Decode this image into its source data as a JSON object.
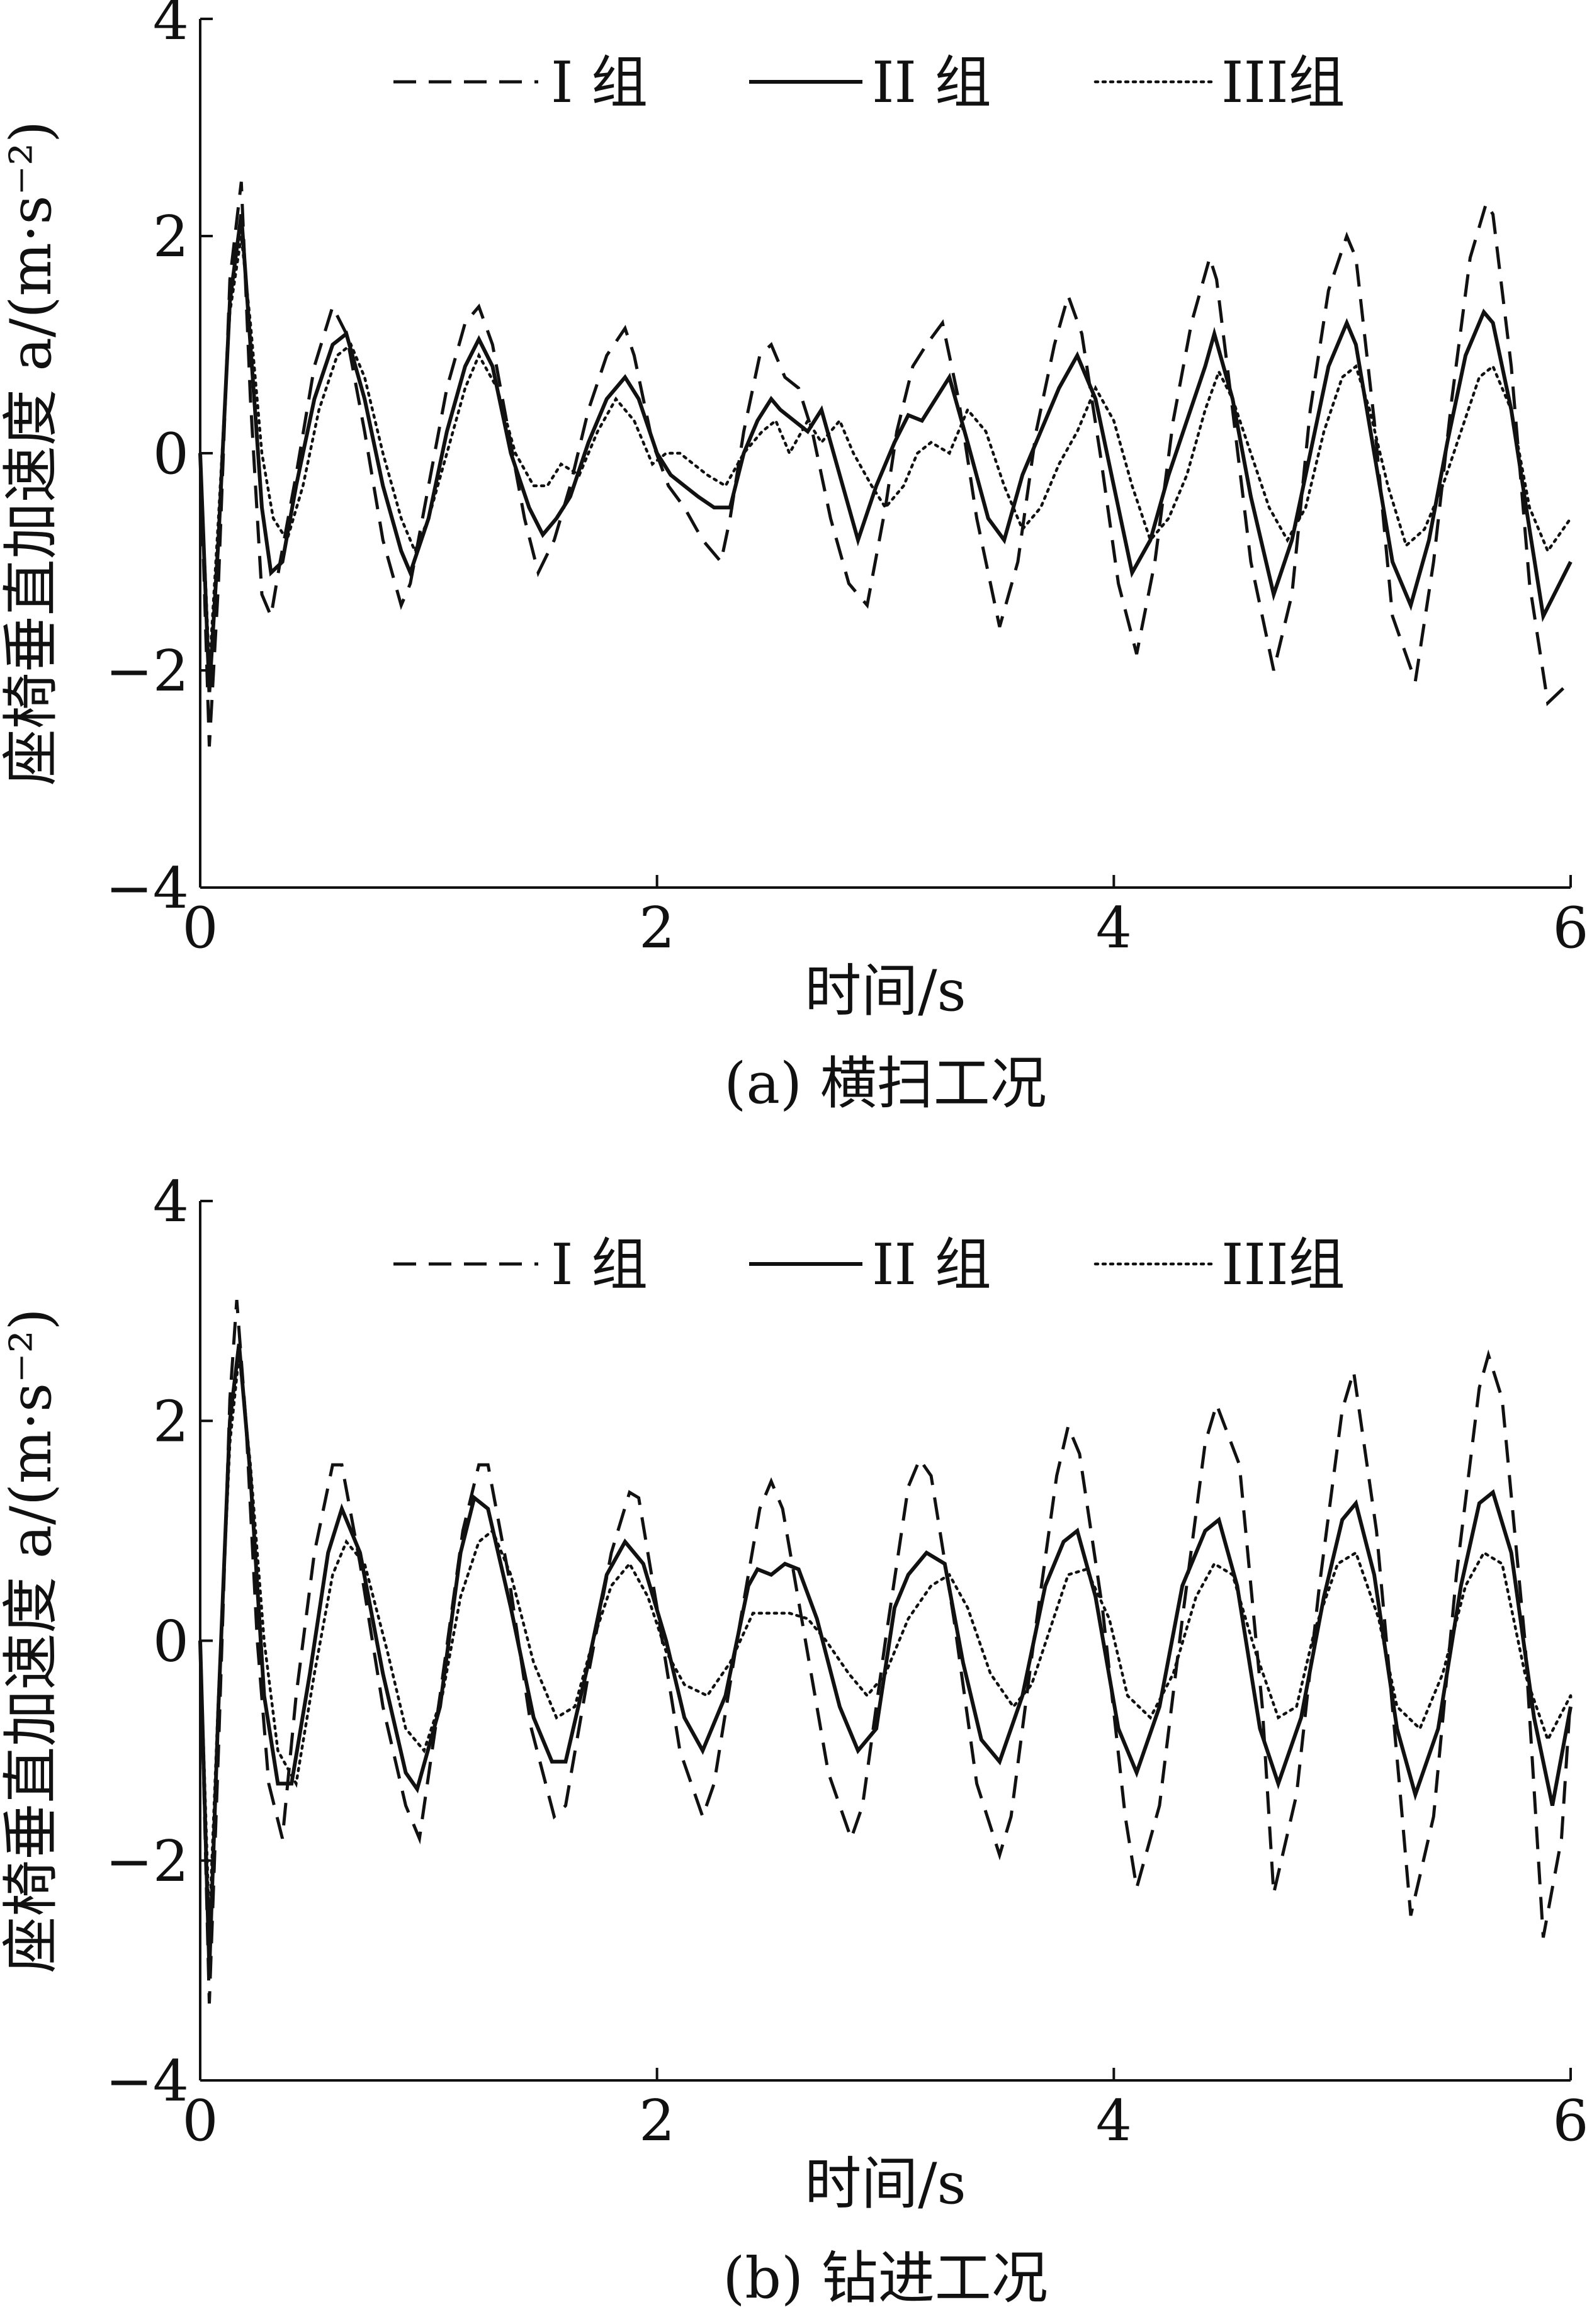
{
  "figure": {
    "legend": [
      "I 组",
      "II 组",
      "III组"
    ],
    "ylabel": "座椅垂直加速度 a/(m·s⁻²)",
    "xlabel": "时间/s"
  },
  "chart_data": [
    {
      "type": "line",
      "caption": "(a)  横扫工况",
      "xlabel": "时间/s",
      "ylabel": "座椅垂直加速度 a/(m·s⁻²)",
      "xlim": [
        0,
        6
      ],
      "ylim": [
        -4,
        4
      ],
      "xticks": [
        0,
        2,
        4,
        6
      ],
      "yticks": [
        -4,
        -2,
        0,
        2,
        4
      ],
      "ytick_labels": [
        "−4",
        "−2",
        "0",
        "2",
        "4"
      ],
      "grid": false,
      "legend_position": "top",
      "series": [
        {
          "name": "I 组",
          "style": "dashed",
          "x": [
            0,
            0.04,
            0.08,
            0.13,
            0.18,
            0.22,
            0.27,
            0.31,
            0.35,
            0.42,
            0.5,
            0.58,
            0.64,
            0.72,
            0.8,
            0.88,
            0.92,
            1.0,
            1.08,
            1.16,
            1.22,
            1.28,
            1.35,
            1.42,
            1.48,
            1.55,
            1.62,
            1.7,
            1.78,
            1.86,
            1.9,
            1.98,
            2.05,
            2.12,
            2.2,
            2.28,
            2.32,
            2.38,
            2.45,
            2.5,
            2.56,
            2.62,
            2.68,
            2.76,
            2.84,
            2.92,
            3.0,
            3.05,
            3.12,
            3.18,
            3.25,
            3.32,
            3.4,
            3.5,
            3.58,
            3.66,
            3.74,
            3.8,
            3.86,
            3.94,
            4.02,
            4.1,
            4.18,
            4.26,
            4.34,
            4.42,
            4.45,
            4.52,
            4.6,
            4.7,
            4.78,
            4.86,
            4.94,
            5.02,
            5.06,
            5.14,
            5.22,
            5.32,
            5.4,
            5.48,
            5.56,
            5.63,
            5.66,
            5.74,
            5.82,
            5.9,
            6.0
          ],
          "values": [
            0,
            -2.7,
            -1.2,
            1.6,
            2.5,
            0.5,
            -1.3,
            -1.5,
            -1.0,
            -0.2,
            0.8,
            1.35,
            1.1,
            0.2,
            -0.8,
            -1.4,
            -1.2,
            -0.3,
            0.6,
            1.2,
            1.35,
            1.0,
            0.2,
            -0.6,
            -1.1,
            -0.8,
            -0.3,
            0.4,
            0.9,
            1.15,
            0.9,
            0.1,
            -0.3,
            -0.5,
            -0.8,
            -1.0,
            -0.6,
            0.2,
            0.9,
            1.0,
            0.7,
            0.6,
            0.2,
            -0.6,
            -1.2,
            -1.4,
            -0.5,
            0.2,
            0.8,
            1.0,
            1.2,
            0.5,
            -0.6,
            -1.6,
            -1.0,
            0.2,
            1.0,
            1.45,
            1.1,
            0.0,
            -1.2,
            -1.85,
            -1.0,
            0.3,
            1.2,
            1.8,
            1.6,
            0.4,
            -1.0,
            -2.0,
            -1.3,
            0.4,
            1.5,
            2.0,
            1.8,
            0.3,
            -1.5,
            -2.1,
            -1.0,
            0.5,
            1.8,
            2.3,
            2.2,
            0.8,
            -1.2,
            -2.3,
            -2.1
          ]
        },
        {
          "name": "II 组",
          "style": "solid",
          "x": [
            0,
            0.04,
            0.08,
            0.13,
            0.18,
            0.22,
            0.27,
            0.31,
            0.36,
            0.42,
            0.5,
            0.58,
            0.64,
            0.72,
            0.8,
            0.88,
            0.92,
            1.0,
            1.08,
            1.16,
            1.22,
            1.28,
            1.36,
            1.44,
            1.5,
            1.56,
            1.62,
            1.7,
            1.78,
            1.86,
            1.92,
            2.0,
            2.06,
            2.12,
            2.18,
            2.25,
            2.32,
            2.38,
            2.44,
            2.5,
            2.54,
            2.6,
            2.66,
            2.72,
            2.8,
            2.88,
            2.96,
            3.04,
            3.1,
            3.16,
            3.22,
            3.28,
            3.36,
            3.45,
            3.52,
            3.6,
            3.68,
            3.76,
            3.84,
            3.92,
            4.0,
            4.08,
            4.16,
            4.24,
            4.32,
            4.4,
            4.44,
            4.52,
            4.6,
            4.7,
            4.78,
            4.86,
            4.94,
            5.02,
            5.06,
            5.14,
            5.22,
            5.3,
            5.38,
            5.46,
            5.54,
            5.62,
            5.66,
            5.74,
            5.82,
            5.88,
            6.0
          ],
          "values": [
            0,
            -2.2,
            -0.8,
            1.4,
            2.2,
            1.0,
            -0.5,
            -1.1,
            -1.0,
            -0.3,
            0.5,
            1.0,
            1.1,
            0.5,
            -0.3,
            -0.9,
            -1.1,
            -0.6,
            0.2,
            0.8,
            1.05,
            0.8,
            0.0,
            -0.5,
            -0.75,
            -0.6,
            -0.4,
            0.1,
            0.5,
            0.7,
            0.5,
            0.0,
            -0.2,
            -0.3,
            -0.4,
            -0.5,
            -0.5,
            0.0,
            0.3,
            0.5,
            0.4,
            0.3,
            0.2,
            0.4,
            -0.2,
            -0.8,
            -0.3,
            0.1,
            0.35,
            0.3,
            0.5,
            0.7,
            0.1,
            -0.6,
            -0.8,
            -0.2,
            0.2,
            0.6,
            0.9,
            0.5,
            -0.3,
            -1.1,
            -0.8,
            -0.2,
            0.3,
            0.8,
            1.1,
            0.5,
            -0.4,
            -1.3,
            -0.8,
            0.0,
            0.8,
            1.2,
            1.0,
            0.0,
            -1.0,
            -1.4,
            -0.8,
            0.1,
            0.9,
            1.3,
            1.2,
            0.4,
            -0.7,
            -1.5,
            -1.0
          ]
        },
        {
          "name": "III组",
          "style": "dotted",
          "x": [
            0,
            0.04,
            0.08,
            0.13,
            0.18,
            0.22,
            0.27,
            0.32,
            0.38,
            0.45,
            0.52,
            0.6,
            0.66,
            0.72,
            0.8,
            0.88,
            0.94,
            1.0,
            1.08,
            1.16,
            1.22,
            1.3,
            1.38,
            1.46,
            1.52,
            1.58,
            1.66,
            1.74,
            1.82,
            1.9,
            1.98,
            2.04,
            2.1,
            2.16,
            2.22,
            2.3,
            2.38,
            2.46,
            2.52,
            2.58,
            2.66,
            2.72,
            2.8,
            2.86,
            2.94,
            3.0,
            3.08,
            3.14,
            3.2,
            3.28,
            3.36,
            3.44,
            3.52,
            3.6,
            3.68,
            3.76,
            3.84,
            3.92,
            4.0,
            4.08,
            4.16,
            4.24,
            4.32,
            4.4,
            4.46,
            4.52,
            4.6,
            4.68,
            4.76,
            4.84,
            4.92,
            5.0,
            5.06,
            5.12,
            5.2,
            5.28,
            5.36,
            5.44,
            5.52,
            5.6,
            5.66,
            5.74,
            5.82,
            5.9,
            6.0
          ],
          "values": [
            0,
            -2.0,
            -0.6,
            1.3,
            2.0,
            1.2,
            0.0,
            -0.6,
            -0.8,
            -0.3,
            0.4,
            0.9,
            1.0,
            0.7,
            0.0,
            -0.6,
            -0.9,
            -0.6,
            0.0,
            0.6,
            0.9,
            0.6,
            0.0,
            -0.3,
            -0.3,
            -0.1,
            -0.2,
            0.2,
            0.5,
            0.3,
            -0.1,
            0.0,
            0.0,
            -0.1,
            -0.2,
            -0.3,
            0.0,
            0.2,
            0.3,
            0.0,
            0.3,
            0.1,
            0.3,
            0.0,
            -0.3,
            -0.5,
            -0.3,
            0.0,
            0.1,
            0.0,
            0.4,
            0.2,
            -0.3,
            -0.7,
            -0.5,
            -0.1,
            0.2,
            0.6,
            0.3,
            -0.3,
            -0.8,
            -0.6,
            -0.2,
            0.4,
            0.75,
            0.5,
            0.0,
            -0.5,
            -0.8,
            -0.5,
            0.2,
            0.7,
            0.8,
            0.4,
            -0.3,
            -0.85,
            -0.7,
            -0.3,
            0.2,
            0.7,
            0.8,
            0.4,
            -0.5,
            -0.9,
            -0.6
          ]
        }
      ]
    },
    {
      "type": "line",
      "caption": "(b)  钻进工况",
      "xlabel": "时间/s",
      "ylabel": "座椅垂直加速度 a/(m·s⁻²)",
      "xlim": [
        0,
        6
      ],
      "ylim": [
        -4,
        4
      ],
      "xticks": [
        0,
        2,
        4,
        6
      ],
      "yticks": [
        -4,
        -2,
        0,
        2,
        4
      ],
      "ytick_labels": [
        "−4",
        "−2",
        "0",
        "2",
        "4"
      ],
      "grid": false,
      "legend_position": "top",
      "series": [
        {
          "name": "I 组",
          "style": "dashed",
          "x": [
            0,
            0.04,
            0.08,
            0.13,
            0.16,
            0.2,
            0.25,
            0.3,
            0.36,
            0.42,
            0.5,
            0.58,
            0.62,
            0.7,
            0.8,
            0.9,
            0.96,
            1.05,
            1.15,
            1.22,
            1.26,
            1.35,
            1.45,
            1.55,
            1.6,
            1.7,
            1.8,
            1.88,
            1.92,
            2.0,
            2.1,
            2.2,
            2.25,
            2.35,
            2.45,
            2.5,
            2.55,
            2.65,
            2.75,
            2.85,
            2.9,
            3.0,
            3.1,
            3.15,
            3.2,
            3.3,
            3.4,
            3.5,
            3.55,
            3.65,
            3.75,
            3.8,
            3.85,
            3.95,
            4.05,
            4.1,
            4.2,
            4.3,
            4.4,
            4.45,
            4.55,
            4.65,
            4.7,
            4.8,
            4.9,
            5.0,
            5.05,
            5.15,
            5.25,
            5.3,
            5.4,
            5.5,
            5.6,
            5.64,
            5.7,
            5.8,
            5.88,
            5.96,
            6.0
          ],
          "values": [
            0,
            -3.3,
            -1.0,
            2.2,
            3.1,
            2.0,
            0.0,
            -1.3,
            -1.8,
            -0.5,
            0.8,
            1.6,
            1.6,
            0.7,
            -0.6,
            -1.5,
            -1.8,
            -0.5,
            1.0,
            1.6,
            1.6,
            0.6,
            -0.8,
            -1.6,
            -1.5,
            -0.3,
            0.8,
            1.35,
            1.3,
            0.3,
            -1.0,
            -1.6,
            -1.3,
            0.0,
            1.2,
            1.45,
            1.2,
            0.0,
            -1.2,
            -1.8,
            -1.5,
            0.0,
            1.4,
            1.65,
            1.5,
            0.2,
            -1.3,
            -1.95,
            -1.6,
            0.0,
            1.5,
            1.95,
            1.7,
            0.3,
            -1.6,
            -2.25,
            -1.5,
            0.2,
            1.8,
            2.15,
            1.6,
            -0.6,
            -2.3,
            -1.4,
            0.5,
            2.1,
            2.45,
            1.0,
            -1.3,
            -2.5,
            -1.6,
            0.6,
            2.3,
            2.6,
            2.2,
            0.0,
            -2.7,
            -1.8,
            -0.5
          ]
        },
        {
          "name": "II 组",
          "style": "solid",
          "x": [
            0,
            0.04,
            0.08,
            0.13,
            0.17,
            0.22,
            0.28,
            0.34,
            0.4,
            0.48,
            0.56,
            0.62,
            0.7,
            0.8,
            0.9,
            0.95,
            1.05,
            1.14,
            1.2,
            1.26,
            1.36,
            1.46,
            1.54,
            1.6,
            1.7,
            1.78,
            1.86,
            1.94,
            2.04,
            2.12,
            2.2,
            2.3,
            2.4,
            2.44,
            2.5,
            2.56,
            2.62,
            2.7,
            2.8,
            2.88,
            2.96,
            3.04,
            3.1,
            3.18,
            3.26,
            3.34,
            3.42,
            3.5,
            3.6,
            3.7,
            3.78,
            3.84,
            3.92,
            4.02,
            4.1,
            4.2,
            4.3,
            4.4,
            4.46,
            4.54,
            4.64,
            4.72,
            4.82,
            4.92,
            5.0,
            5.06,
            5.14,
            5.24,
            5.32,
            5.42,
            5.52,
            5.6,
            5.66,
            5.74,
            5.84,
            5.92,
            6.0
          ],
          "values": [
            0,
            -3.0,
            -0.6,
            2.0,
            2.7,
            1.5,
            -0.5,
            -1.3,
            -1.3,
            -0.3,
            0.8,
            1.2,
            0.8,
            -0.3,
            -1.2,
            -1.35,
            -0.6,
            0.8,
            1.3,
            1.2,
            0.3,
            -0.7,
            -1.1,
            -1.1,
            -0.2,
            0.6,
            0.9,
            0.7,
            0.0,
            -0.7,
            -1.0,
            -0.5,
            0.5,
            0.65,
            0.6,
            0.7,
            0.65,
            0.2,
            -0.6,
            -1.0,
            -0.8,
            0.3,
            0.6,
            0.8,
            0.7,
            -0.2,
            -0.9,
            -1.1,
            -0.5,
            0.5,
            0.9,
            1.0,
            0.4,
            -0.8,
            -1.2,
            -0.6,
            0.5,
            1.0,
            1.1,
            0.5,
            -0.8,
            -1.3,
            -0.7,
            0.4,
            1.1,
            1.25,
            0.6,
            -0.8,
            -1.4,
            -0.8,
            0.5,
            1.25,
            1.35,
            0.8,
            -0.7,
            -1.5,
            -0.6
          ]
        },
        {
          "name": "III组",
          "style": "dotted",
          "x": [
            0,
            0.04,
            0.08,
            0.13,
            0.17,
            0.22,
            0.28,
            0.34,
            0.42,
            0.5,
            0.58,
            0.64,
            0.72,
            0.82,
            0.9,
            0.98,
            1.06,
            1.14,
            1.22,
            1.28,
            1.36,
            1.46,
            1.56,
            1.64,
            1.72,
            1.8,
            1.88,
            1.96,
            2.04,
            2.12,
            2.22,
            2.32,
            2.42,
            2.5,
            2.58,
            2.66,
            2.74,
            2.84,
            2.92,
            3.0,
            3.1,
            3.2,
            3.28,
            3.36,
            3.46,
            3.56,
            3.64,
            3.72,
            3.8,
            3.88,
            3.98,
            4.06,
            4.16,
            4.26,
            4.36,
            4.44,
            4.52,
            4.62,
            4.72,
            4.8,
            4.88,
            4.98,
            5.06,
            5.16,
            5.24,
            5.34,
            5.44,
            5.54,
            5.62,
            5.7,
            5.8,
            5.9,
            6.0
          ],
          "values": [
            0,
            -2.6,
            -0.5,
            1.8,
            2.6,
            1.6,
            0.0,
            -1.0,
            -1.3,
            -0.3,
            0.6,
            0.9,
            0.7,
            -0.1,
            -0.8,
            -1.0,
            -0.5,
            0.4,
            0.9,
            1.0,
            0.6,
            -0.2,
            -0.7,
            -0.6,
            0.0,
            0.5,
            0.7,
            0.4,
            -0.1,
            -0.4,
            -0.5,
            -0.2,
            0.25,
            0.25,
            0.25,
            0.2,
            0.0,
            -0.3,
            -0.5,
            -0.3,
            0.2,
            0.5,
            0.6,
            0.3,
            -0.3,
            -0.6,
            -0.4,
            0.1,
            0.6,
            0.65,
            0.2,
            -0.5,
            -0.7,
            -0.3,
            0.4,
            0.7,
            0.6,
            -0.1,
            -0.7,
            -0.6,
            0.1,
            0.7,
            0.8,
            0.2,
            -0.6,
            -0.8,
            -0.3,
            0.5,
            0.8,
            0.7,
            -0.3,
            -0.9,
            -0.5
          ]
        }
      ]
    }
  ]
}
